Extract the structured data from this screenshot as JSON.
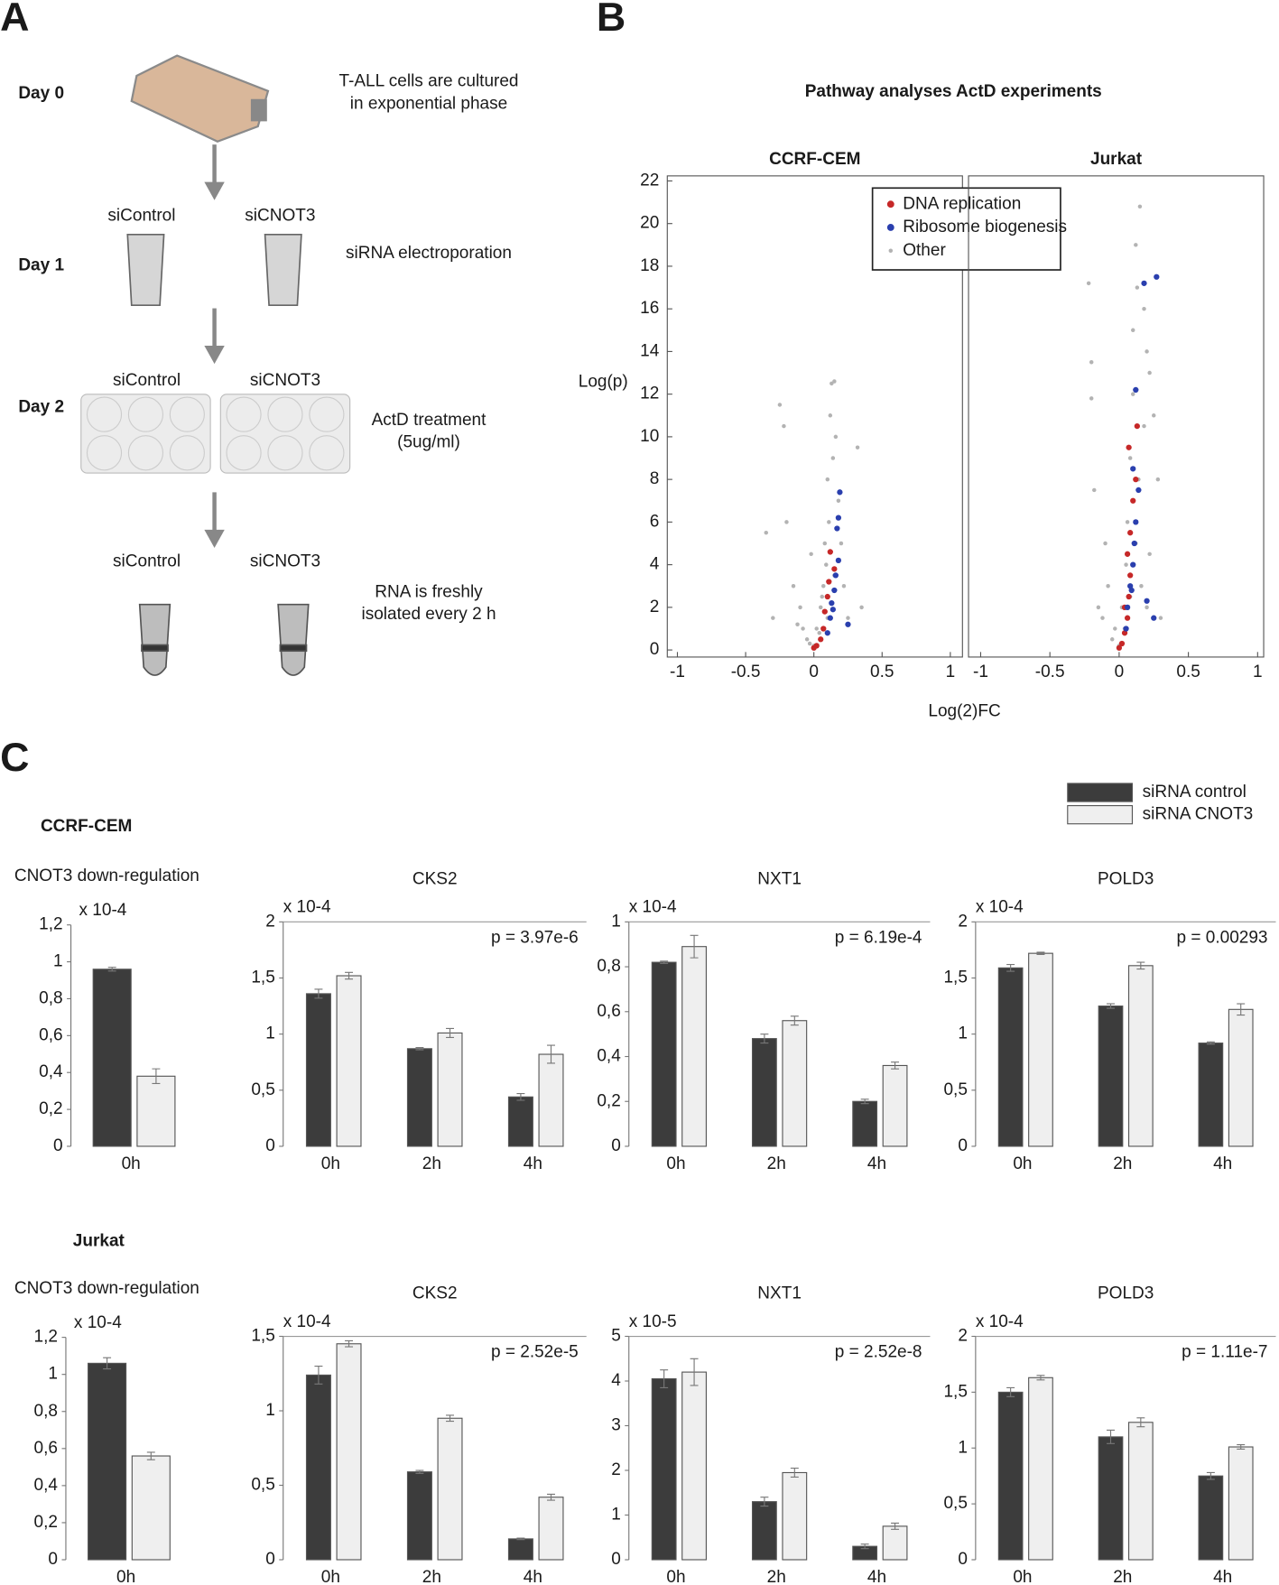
{
  "panel_a": {
    "label": "A",
    "steps": [
      {
        "day": "Day 0",
        "description": [
          "T-ALL cells are cultured",
          "in exponential phase"
        ]
      },
      {
        "day": "Day 1",
        "conditions": [
          "siControl",
          "siCNOT3"
        ],
        "description": [
          "siRNA electroporation"
        ]
      },
      {
        "day": "Day 2",
        "conditions": [
          "siControl",
          "siCNOT3"
        ],
        "description": [
          "ActD treatment",
          "(5ug/ml)"
        ]
      },
      {
        "conditions": [
          "siControl",
          "siCNOT3"
        ],
        "description": [
          "RNA is freshly",
          "isolated every 2 h"
        ]
      }
    ]
  },
  "panel_b": {
    "label": "B",
    "title": "Pathway analyses ActD experiments",
    "x_label": "Log(2)FC",
    "y_label": "Log(p)"
  },
  "panel_c": {
    "label": "C",
    "groups": [
      "CCRF-CEM",
      "Jurkat"
    ]
  },
  "legend": [
    {
      "name": "siRNA control",
      "color": "#3c3c3c"
    },
    {
      "name": "siRNA CNOT3",
      "color": "#efefef"
    }
  ],
  "chart_data": [
    {
      "type": "scatter",
      "title": "CCRF-CEM",
      "xlim": [
        -1,
        1
      ],
      "ylim": [
        0,
        22
      ],
      "xticks": [
        -1,
        -0.5,
        0,
        0.5,
        1
      ],
      "yticks": [
        0,
        2,
        4,
        6,
        8,
        10,
        12,
        14,
        16,
        18,
        20,
        22
      ],
      "series": [
        {
          "name": "Other",
          "color": "#b3b3b3",
          "x": [
            -0.25,
            -0.22,
            -0.2,
            -0.3,
            -0.15,
            -0.1,
            -0.08,
            -0.05,
            -0.03,
            0,
            0.02,
            0.05,
            0.07,
            0.08,
            0.1,
            0.12,
            0.13,
            0.15,
            0.16,
            0.14,
            0.11,
            0.09,
            0.06,
            0.18,
            0.2,
            0.22,
            0.25,
            0.32,
            0.35,
            -0.35,
            0.04,
            -0.12,
            0.1,
            0.15,
            -0.02
          ],
          "y": [
            11.5,
            10.5,
            6,
            1.5,
            3,
            2,
            1,
            0.5,
            0.3,
            0.2,
            1,
            2,
            3,
            5,
            8,
            11,
            12.5,
            12.6,
            10,
            9,
            6,
            4,
            2.5,
            7,
            5,
            3,
            1.5,
            9.5,
            2,
            5.5,
            0.8,
            1.2,
            1.5,
            3.5,
            4.5
          ]
        },
        {
          "name": "DNA replication",
          "color": "#c62828",
          "x": [
            0,
            0.02,
            0.05,
            0.07,
            0.08,
            0.1,
            0.11,
            0.12,
            0.15
          ],
          "y": [
            0.1,
            0.2,
            0.5,
            1,
            1.8,
            2.5,
            3.2,
            4.6,
            3.8
          ]
        },
        {
          "name": "Ribosome biogenesis",
          "color": "#2a3fae",
          "x": [
            0.1,
            0.12,
            0.13,
            0.15,
            0.16,
            0.18,
            0.17,
            0.18,
            0.19,
            0.25,
            0.14
          ],
          "y": [
            0.8,
            1.5,
            2.2,
            2.8,
            3.5,
            4.2,
            5.7,
            6.2,
            7.4,
            1.2,
            1.9
          ]
        }
      ],
      "legend": "top-right"
    },
    {
      "type": "scatter",
      "title": "Jurkat",
      "xlim": [
        -1,
        1
      ],
      "ylim": [
        0,
        22
      ],
      "xticks": [
        -1,
        -0.5,
        0,
        0.5,
        1
      ],
      "series": [
        {
          "color": "#b3b3b3",
          "x": [
            -0.22,
            -0.2,
            -0.2,
            -0.18,
            -0.1,
            -0.15,
            -0.05,
            -0.03,
            0,
            0.02,
            0.05,
            0.06,
            0.08,
            0.1,
            0.1,
            0.12,
            0.15,
            0.18,
            0.2,
            0.22,
            0.25,
            0.14,
            0.12,
            0.16,
            0.2,
            0.22,
            0.28,
            0.3,
            -0.08,
            0.04,
            0.08,
            0.1,
            -0.12,
            0.18,
            0.13
          ],
          "y": [
            17.2,
            13.5,
            11.8,
            7.5,
            5,
            2,
            0.5,
            1,
            0.2,
            2,
            4,
            6,
            9,
            12,
            15,
            19,
            20.8,
            16,
            14,
            13,
            11,
            8,
            5,
            3,
            2,
            4.5,
            8,
            1.5,
            3,
            1,
            2.5,
            7,
            1.5,
            10.5,
            17
          ]
        },
        {
          "color": "#c62828",
          "x": [
            0,
            0.02,
            0.04,
            0.06,
            0.07,
            0.08,
            0.06,
            0.08,
            0.1,
            0.07,
            0.13,
            0.12,
            0.04
          ],
          "y": [
            0.1,
            0.3,
            0.8,
            1.5,
            2.5,
            3.5,
            4.5,
            5.5,
            7,
            9.5,
            10.5,
            8,
            2
          ]
        },
        {
          "color": "#2a3fae",
          "x": [
            0.05,
            0.06,
            0.08,
            0.1,
            0.11,
            0.12,
            0.14,
            0.1,
            0.12,
            0.18,
            0.27,
            0.2,
            0.25,
            0.09
          ],
          "y": [
            1,
            2,
            3,
            4,
            5,
            6,
            7.5,
            8.5,
            12.2,
            17.2,
            17.5,
            2.3,
            1.5,
            2.8
          ]
        }
      ]
    },
    {
      "type": "bar",
      "title": "CNOT3 down-regulation",
      "unit": "x 10-4",
      "categories": [
        "0h"
      ],
      "ylim": [
        0,
        1.2
      ],
      "yticks": [
        0,
        {
          "value": 0.2,
          "label": "0,2"
        },
        {
          "value": 0.4,
          "label": "0,4"
        },
        {
          "value": 0.6,
          "label": "0,6"
        },
        {
          "value": 0.8,
          "label": "0,8"
        },
        1,
        {
          "value": 1.2,
          "label": "1,2"
        }
      ],
      "series": [
        {
          "values": [
            0.96
          ],
          "errors": [
            0.01
          ]
        },
        {
          "values": [
            0.38
          ],
          "errors": [
            0.04
          ]
        }
      ]
    },
    {
      "type": "bar",
      "title": "CKS2",
      "unit": "x 10-4",
      "annotation": "p = 3.97e-6",
      "categories": [
        "0h",
        "2h",
        "4h"
      ],
      "ylim": [
        0,
        2
      ],
      "yticks": [
        0,
        {
          "value": 0.5,
          "label": "0,5"
        },
        1,
        {
          "value": 1.5,
          "label": "1,5"
        },
        2
      ],
      "series": [
        {
          "values": [
            1.36,
            0.87,
            0.44
          ],
          "errors": [
            0.04,
            0.01,
            0.03
          ]
        },
        {
          "values": [
            1.52,
            1.01,
            0.82
          ],
          "errors": [
            0.03,
            0.04,
            0.08
          ]
        }
      ]
    },
    {
      "type": "bar",
      "title": "NXT1",
      "unit": "x 10-4",
      "annotation": "p = 6.19e-4",
      "categories": [
        "0h",
        "2h",
        "4h"
      ],
      "ylim": [
        0,
        1
      ],
      "yticks": [
        0,
        {
          "value": 0.2,
          "label": "0,2"
        },
        {
          "value": 0.4,
          "label": "0,4"
        },
        {
          "value": 0.6,
          "label": "0,6"
        },
        {
          "value": 0.8,
          "label": "0,8"
        },
        1
      ],
      "series": [
        {
          "values": [
            0.82,
            0.48,
            0.2
          ],
          "errors": [
            0.005,
            0.02,
            0.01
          ]
        },
        {
          "values": [
            0.89,
            0.56,
            0.36
          ],
          "errors": [
            0.05,
            0.02,
            0.015
          ]
        }
      ]
    },
    {
      "type": "bar",
      "title": "POLD3",
      "unit": "x 10-4",
      "annotation": "p = 0.00293",
      "categories": [
        "0h",
        "2h",
        "4h"
      ],
      "ylim": [
        0,
        2
      ],
      "yticks": [
        0,
        {
          "value": 0.5,
          "label": "0,5"
        },
        1,
        {
          "value": 1.5,
          "label": "1,5"
        },
        2
      ],
      "series": [
        {
          "values": [
            1.59,
            1.25,
            0.92
          ],
          "errors": [
            0.03,
            0.02,
            0.01
          ]
        },
        {
          "values": [
            1.72,
            1.61,
            1.22
          ],
          "errors": [
            0.01,
            0.03,
            0.05
          ]
        }
      ]
    },
    {
      "type": "bar",
      "title": "CNOT3 down-regulation",
      "unit": "x 10-4",
      "categories": [
        "0h"
      ],
      "ylim": [
        0,
        1.2
      ],
      "yticks": [
        0,
        {
          "value": 0.2,
          "label": "0,2"
        },
        {
          "value": 0.4,
          "label": "0,4"
        },
        {
          "value": 0.6,
          "label": "0,6"
        },
        {
          "value": 0.8,
          "label": "0,8"
        },
        1,
        {
          "value": 1.2,
          "label": "1,2"
        }
      ],
      "series": [
        {
          "values": [
            1.06
          ],
          "errors": [
            0.03
          ]
        },
        {
          "values": [
            0.56
          ],
          "errors": [
            0.02
          ]
        }
      ]
    },
    {
      "type": "bar",
      "title": "CKS2",
      "unit": "x 10-4",
      "annotation": "p = 2.52e-5",
      "categories": [
        "0h",
        "2h",
        "4h"
      ],
      "ylim": [
        0,
        1.5
      ],
      "yticks": [
        0,
        {
          "value": 0.5,
          "label": "0,5"
        },
        1,
        {
          "value": 1.5,
          "label": "1,5"
        }
      ],
      "series": [
        {
          "values": [
            1.24,
            0.59,
            0.14
          ],
          "errors": [
            0.06,
            0.01,
            0.005
          ]
        },
        {
          "values": [
            1.45,
            0.95,
            0.42
          ],
          "errors": [
            0.02,
            0.02,
            0.02
          ]
        }
      ]
    },
    {
      "type": "bar",
      "title": "NXT1",
      "unit": "x 10-5",
      "annotation": "p = 2.52e-8",
      "categories": [
        "0h",
        "2h",
        "4h"
      ],
      "ylim": [
        0,
        5
      ],
      "yticks": [
        0,
        1,
        2,
        3,
        4,
        5
      ],
      "series": [
        {
          "values": [
            4.05,
            1.3,
            0.3
          ],
          "errors": [
            0.2,
            0.1,
            0.05
          ]
        },
        {
          "values": [
            4.2,
            1.95,
            0.75
          ],
          "errors": [
            0.3,
            0.1,
            0.07
          ]
        }
      ]
    },
    {
      "type": "bar",
      "title": "POLD3",
      "unit": "x 10-4",
      "annotation": "p = 1.11e-7",
      "categories": [
        "0h",
        "2h",
        "4h"
      ],
      "ylim": [
        0,
        2
      ],
      "yticks": [
        0,
        {
          "value": 0.5,
          "label": "0,5"
        },
        1,
        {
          "value": 1.5,
          "label": "1,5"
        },
        2
      ],
      "series": [
        {
          "values": [
            1.5,
            1.1,
            0.75
          ],
          "errors": [
            0.04,
            0.06,
            0.03
          ]
        },
        {
          "values": [
            1.63,
            1.23,
            1.01
          ],
          "errors": [
            0.02,
            0.04,
            0.02
          ]
        }
      ]
    }
  ]
}
